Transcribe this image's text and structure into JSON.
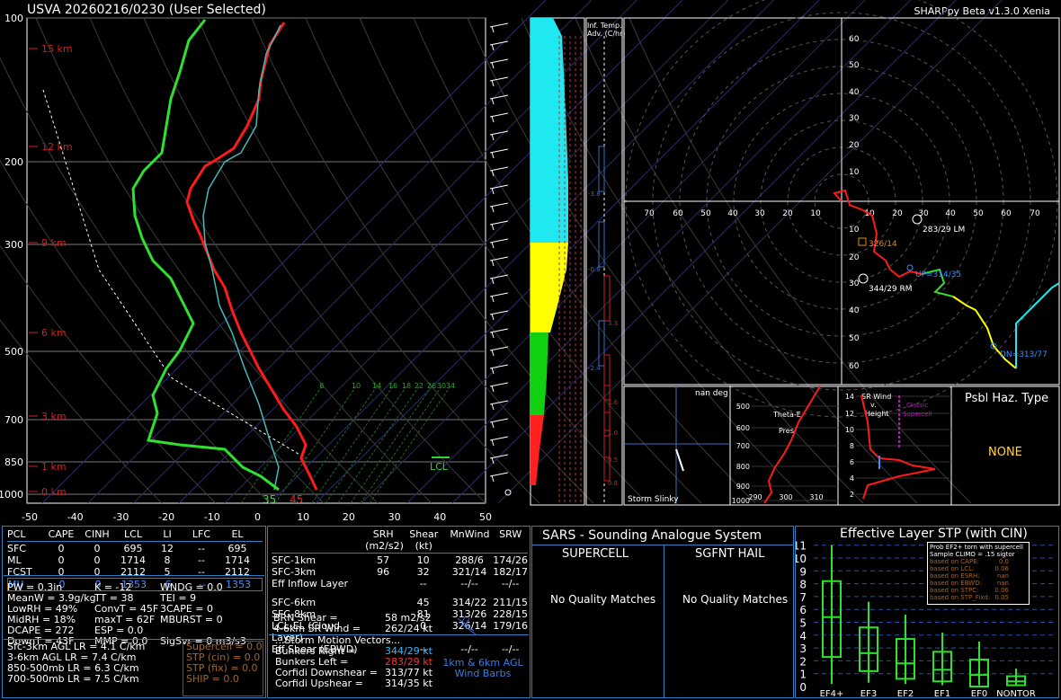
{
  "header": {
    "title": "USVA  20260216/0230  (User Selected)",
    "version": "SHARPpy Beta v1.3.0 Xenia"
  },
  "skewt": {
    "pressure_labels": [
      "100",
      "200",
      "300",
      "500",
      "700",
      "850",
      "1000"
    ],
    "height_labels": [
      "15 km",
      "12 km",
      "9 km",
      "6 km",
      "3 km",
      "1 km",
      "0 km"
    ],
    "temp_labels": [
      "-50",
      "-40",
      "-30",
      "-20",
      "-10",
      "0",
      "10",
      "20",
      "30",
      "40",
      "50"
    ],
    "mix_labels": [
      "6",
      "10",
      "14",
      "16",
      "18",
      "22",
      "26",
      "30",
      "34"
    ],
    "lcl_label": "LCL",
    "sfc_temp": "35",
    "sfc_dew": "45"
  },
  "thetae": {
    "adv_label1": "Inf. Temp.",
    "adv_label2": "Adv. (C/hr)",
    "values": [
      "-3.8",
      "-0.8",
      "3.3",
      "-2.4",
      "1.6",
      "1.0",
      "0.5",
      "0.8"
    ]
  },
  "hodo": {
    "rings": [
      "70",
      "60",
      "50",
      "40",
      "30",
      "20",
      "10",
      "0",
      "10",
      "20",
      "30",
      "40",
      "50",
      "60",
      "70"
    ],
    "vrings": [
      "60",
      "50",
      "40",
      "30",
      "20",
      "10",
      "10",
      "20",
      "30",
      "40",
      "50",
      "60"
    ],
    "lm_label": "283/29 LM",
    "rm_label": "344/29 RM",
    "mean_label": "326/14",
    "up_label": "UP=314/35",
    "dn_label": "DN=313/77"
  },
  "slinky": {
    "top": "nan deg",
    "bottom": "Storm Slinky"
  },
  "thetae_prof": {
    "labels": [
      "500",
      "600",
      "700",
      "800",
      "900",
      "1000"
    ],
    "xlabels": [
      "290",
      "300",
      "310"
    ],
    "t1": "Theta-E",
    "t2": "Pres"
  },
  "srwind": {
    "labels": [
      "14",
      "12",
      "10",
      "8",
      "6",
      "4",
      "2"
    ],
    "t1": "SR Wind",
    "t2": "v.",
    "t3": "Height",
    "t4": "Classic",
    "t5": "Supercell"
  },
  "hazard": {
    "title": "Psbl Haz. Type",
    "value": "NONE"
  },
  "parcel": {
    "cols": [
      "PCL",
      "CAPE",
      "CINH",
      "LCL",
      "LI",
      "LFC",
      "EL"
    ],
    "rows": [
      [
        "SFC",
        "0",
        "0",
        "695",
        "12",
        "--",
        "695"
      ],
      [
        "ML",
        "0",
        "0",
        "1714",
        "8",
        "--",
        "1714"
      ],
      [
        "FCST",
        "0",
        "0",
        "2112",
        "5",
        "--",
        "2112"
      ],
      [
        "MU",
        "0",
        "0",
        "1353",
        "6",
        "--",
        "1353"
      ]
    ]
  },
  "indices": {
    "left": [
      "PW = 0.3in",
      "MeanW = 3.9g/kg",
      "LowRH = 49%",
      "MidRH = 18%",
      "DCAPE = 272",
      "DownT = 43F"
    ],
    "mid": [
      "K = -12",
      "TT = 38",
      "ConvT = 45F",
      "maxT = 62F",
      "ESP = 0.0",
      "MMP = 0.0"
    ],
    "right": [
      "WNDG = 0.0",
      "TEI = 9",
      "3CAPE = 0",
      "MBURST = 0",
      "",
      ""
    ],
    "sigsvr": "SigSvr = 0 m3/s3",
    "lapse": [
      "Sfc-3km AGL LR = 4.1 C/km",
      "3-6km AGL LR = 7.4 C/km",
      "850-500mb LR = 6.3 C/km",
      "700-500mb LR = 7.5 C/km"
    ],
    "comp": [
      "Supercell = 0.0",
      "STP (cin) = 0.0",
      "STP (fix) = 0.0",
      "SHIP = 0.0"
    ]
  },
  "kinematics": {
    "cols": [
      "SRH (m2/s2)",
      "Shear (kt)",
      "MnWind",
      "SRW"
    ],
    "rows": [
      [
        "SFC-1km",
        "57",
        "10",
        "288/6",
        "174/26"
      ],
      [
        "SFC-3km",
        "96",
        "32",
        "321/14",
        "182/17"
      ],
      [
        "Eff Inflow Layer",
        "",
        "--",
        "--/--",
        "--/--"
      ],
      [
        "SFC-6km",
        "",
        "45",
        "314/22",
        "211/15"
      ],
      [
        "SFC-8km",
        "",
        "81",
        "313/26",
        "228/15"
      ],
      [
        "LCL-EL (Cloud Layer)",
        "",
        "0",
        "326/14",
        "179/16"
      ],
      [
        "Eff Shear (EBWD)",
        "",
        "--",
        "--/--",
        "--/--"
      ]
    ],
    "brn_shear": "BRN Shear =",
    "brn_shear_v": "58 m2/s2",
    "sr_wind": "4-6km SR Wind =",
    "sr_wind_v": "262/24 kt",
    "storm": "...Storm Motion Vectors...",
    "br": "Bunkers Right =",
    "br_v": "344/29 kt",
    "bl": "Bunkers Left =",
    "bl_v": "283/29 kt",
    "cd": "Corfidi Downshear =",
    "cd_v": "313/77 kt",
    "cu": "Corfidi Upshear =",
    "cu_v": "314/35 kt",
    "barbs1": "1km & 6km AGL",
    "barbs2": "Wind Barbs"
  },
  "sars": {
    "title": "SARS - Sounding Analogue System",
    "sup": "SUPERCELL",
    "hail": "SGFNT HAIL",
    "nm1": "No Quality Matches",
    "nm2": "No Quality Matches"
  },
  "stp": {
    "title": "Effective Layer STP (with CIN)",
    "yticks": [
      "11",
      "10",
      "9",
      "8",
      "7",
      "6",
      "5",
      "4",
      "3",
      "2",
      "1",
      "0"
    ],
    "cats": [
      "EF4+",
      "EF3",
      "EF2",
      "EF1",
      "EF0",
      "NONTOR"
    ],
    "legend_title1": "Prob EF2+ torn with supercell",
    "legend_title2": "Sample CLIMO = .15 sigtor",
    "legend": [
      [
        "based on CAPE:",
        "0.0"
      ],
      [
        "based on LCL:",
        "0.06"
      ],
      [
        "based on ESRH:",
        "nan"
      ],
      [
        "based on EBWD:",
        "nan"
      ],
      [
        "based on STPC:",
        "0.06"
      ],
      [
        "based on STP_Fixd:",
        "0.05"
      ]
    ]
  }
}
